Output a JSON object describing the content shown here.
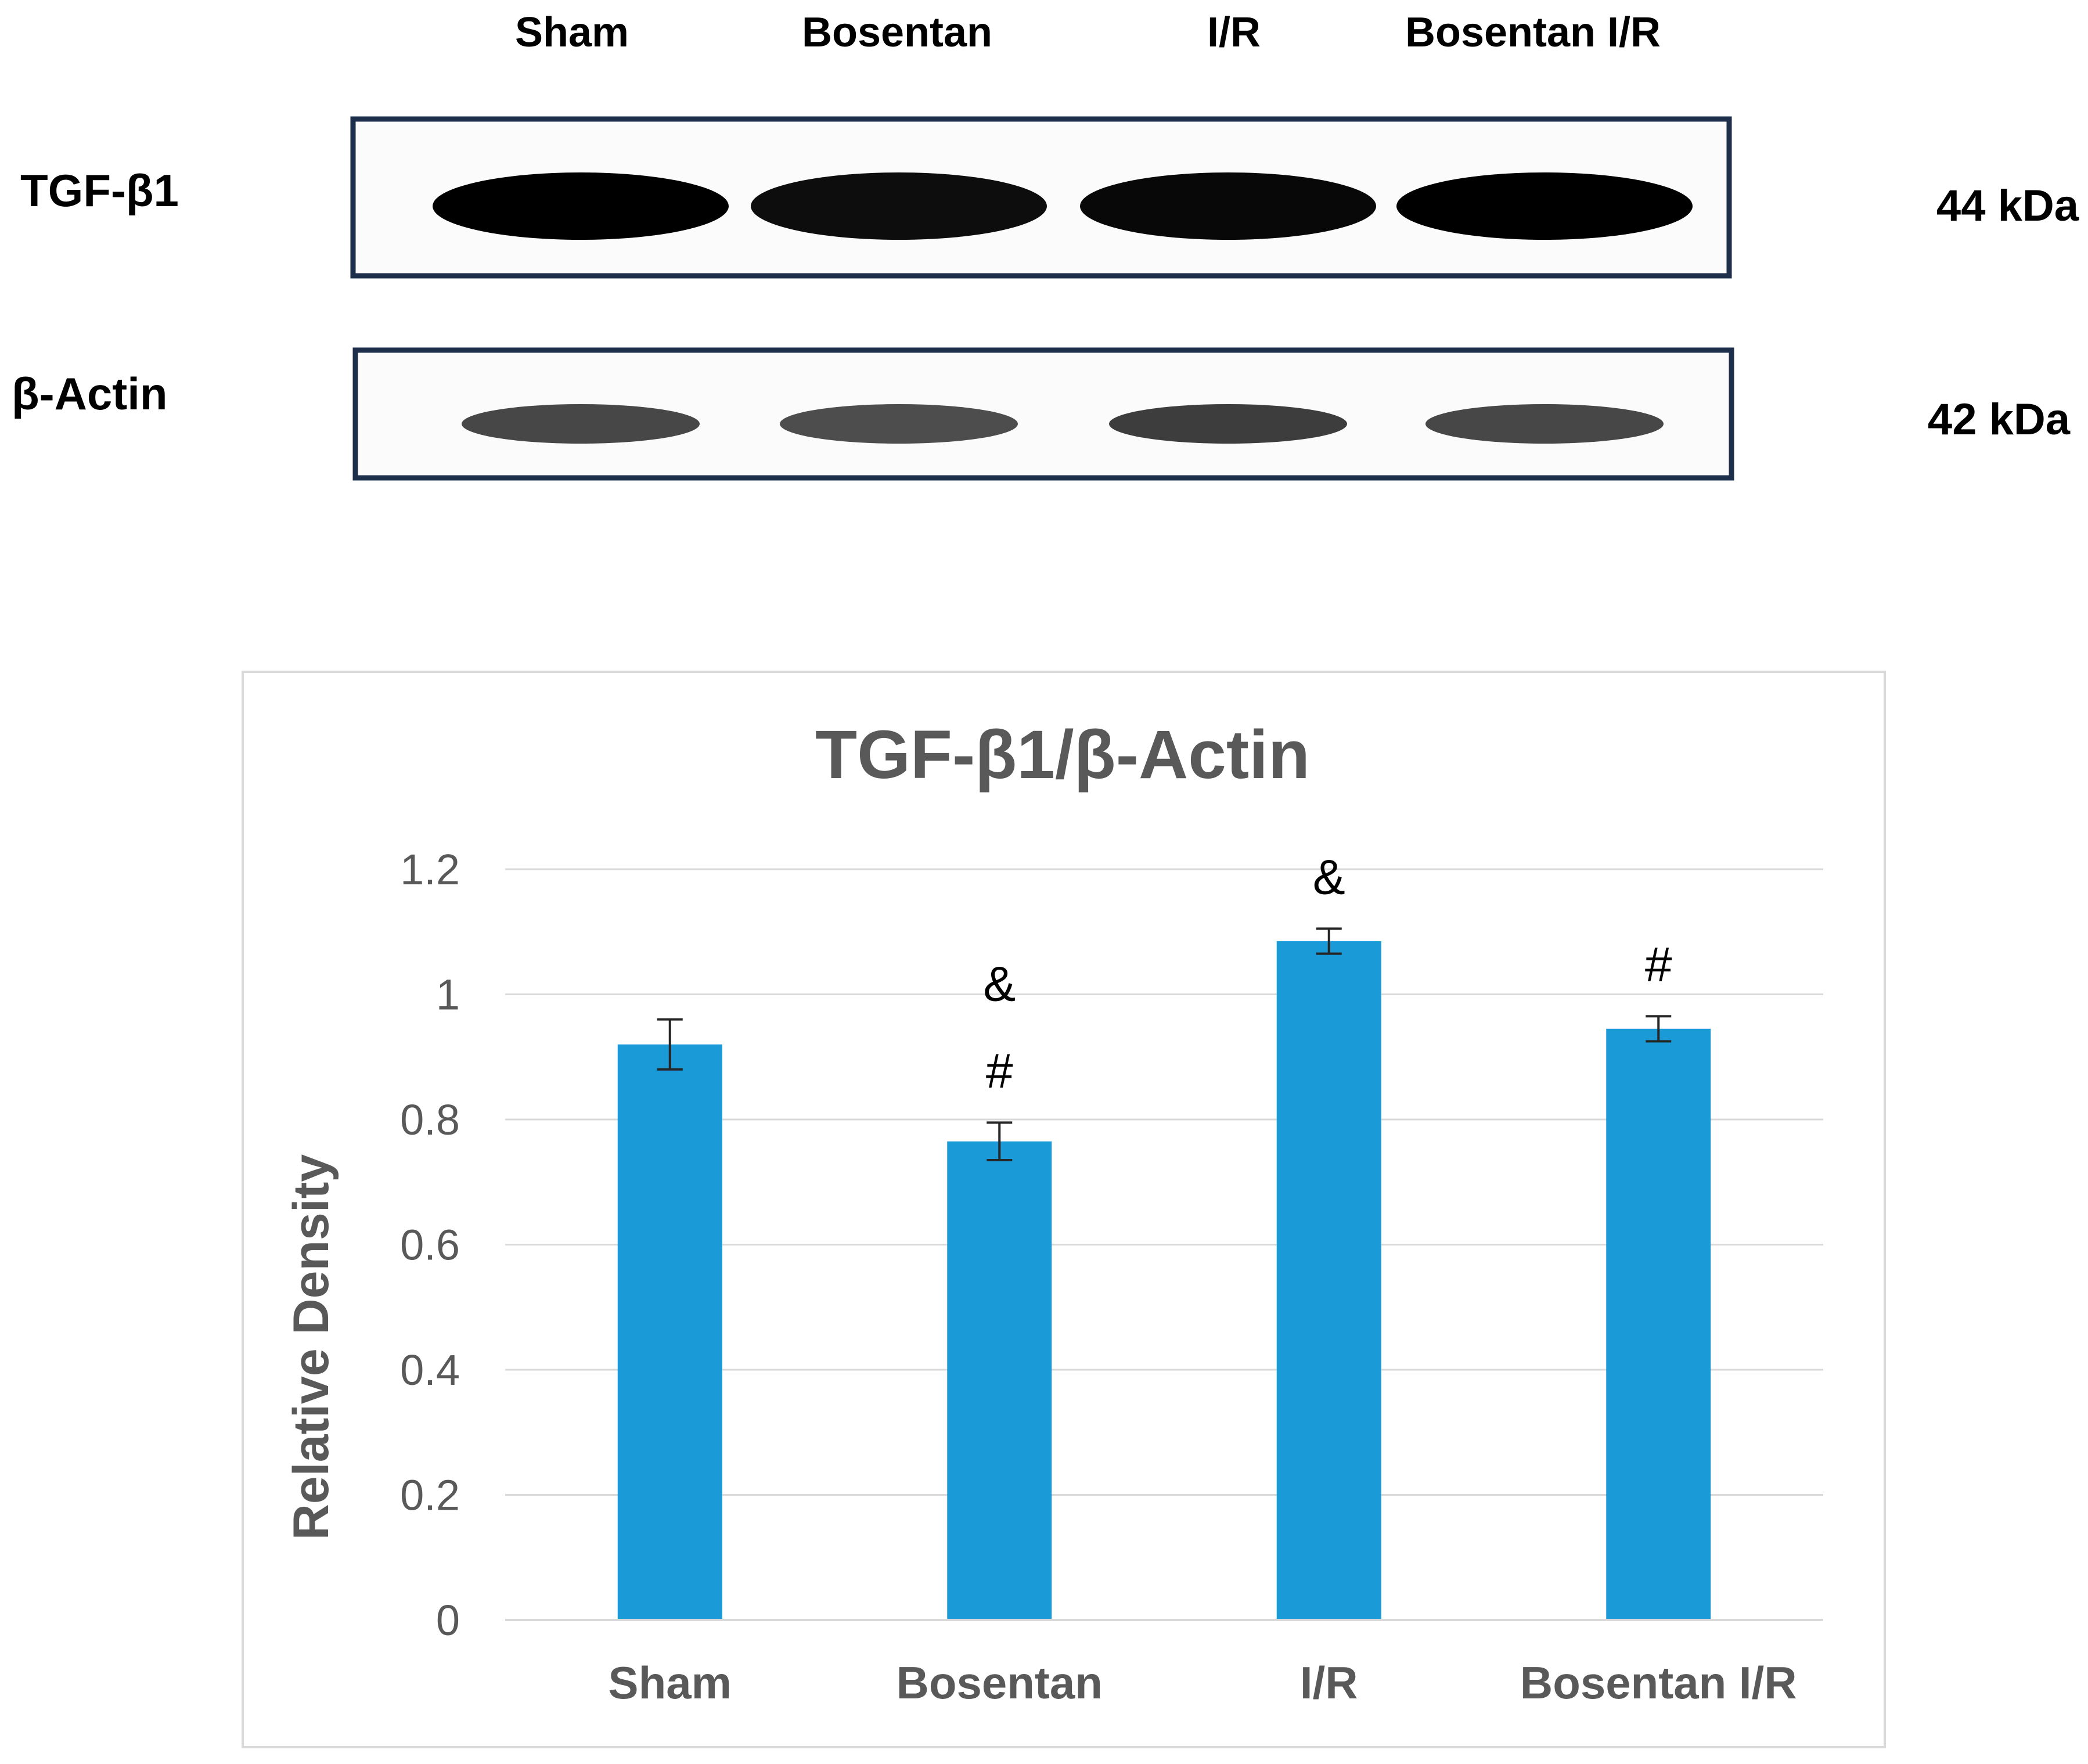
{
  "blot": {
    "lanes": [
      "Sham",
      "Bosentan",
      "I/R",
      "Bosentan I/R"
    ],
    "rows": [
      {
        "label": "TGF-β1",
        "size": "44 kDa",
        "intensity": [
          1.0,
          0.95,
          0.97,
          1.0
        ]
      },
      {
        "label": "β-Actin",
        "size": "42 kDa",
        "intensity": [
          0.72,
          0.7,
          0.76,
          0.72
        ]
      }
    ],
    "frame_color": "#1d2f4a"
  },
  "chart_data": {
    "type": "bar",
    "title": "TGF-β1/β-Actin",
    "xlabel": "",
    "ylabel": "Relative Density",
    "categories": [
      "Sham",
      "Bosentan",
      "I/R",
      "Bosentan I/R"
    ],
    "values": [
      0.92,
      0.765,
      1.085,
      0.945
    ],
    "errors": [
      0.04,
      0.03,
      0.02,
      0.02
    ],
    "annotations": [
      {
        "category": "Bosentan",
        "marks": [
          "&",
          "#"
        ]
      },
      {
        "category": "I/R",
        "marks": [
          "&"
        ]
      },
      {
        "category": "Bosentan I/R",
        "marks": [
          "#"
        ]
      }
    ],
    "ylim": [
      0,
      1.2
    ],
    "yticks": [
      "0",
      "0.2",
      "0.4",
      "0.6",
      "0.8",
      "1",
      "1.2"
    ],
    "grid": true,
    "bar_color": "#1a9bd7"
  }
}
